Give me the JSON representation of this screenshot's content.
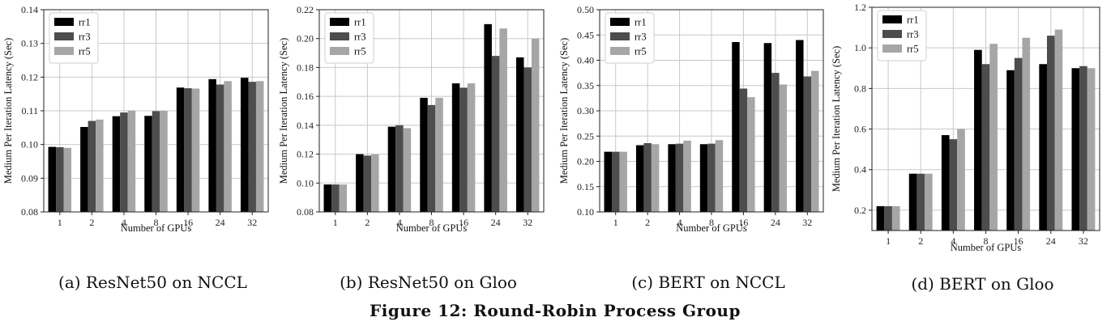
{
  "figure_title": "Figure 12: Round-Robin Process Group",
  "colors": {
    "rr1": "#000000",
    "rr3": "#4d4d4d",
    "rr5": "#a6a6a6"
  },
  "chart_data": [
    {
      "type": "bar",
      "caption": "(a) ResNet50 on NCCL",
      "xlabel": "Number of GPUs",
      "ylabel": "Medium Per Iteration Latency (Sec)",
      "categories": [
        "1",
        "2",
        "4",
        "8",
        "16",
        "24",
        "32"
      ],
      "ylim": [
        0.08,
        0.14
      ],
      "yticks": [
        "0.08",
        "0.09",
        "0.10",
        "0.11",
        "0.12",
        "0.13",
        "0.14"
      ],
      "legend_position": "top-left",
      "grid": true,
      "series": [
        {
          "name": "rr1",
          "values": [
            0.0993,
            0.1052,
            0.1084,
            0.1085,
            0.1169,
            0.1194,
            0.1198
          ]
        },
        {
          "name": "rr3",
          "values": [
            0.0992,
            0.107,
            0.1095,
            0.1099,
            0.1167,
            0.1178,
            0.1186
          ]
        },
        {
          "name": "rr5",
          "values": [
            0.099,
            0.1074,
            0.1101,
            0.11,
            0.1166,
            0.1188,
            0.1188
          ]
        }
      ]
    },
    {
      "type": "bar",
      "caption": "(b) ResNet50 on Gloo",
      "xlabel": "Number of GPUs",
      "ylabel": "Medium Per Iteration Latency (Sec)",
      "categories": [
        "1",
        "2",
        "4",
        "8",
        "16",
        "24",
        "32"
      ],
      "ylim": [
        0.08,
        0.22
      ],
      "yticks": [
        "0.08",
        "0.10",
        "0.12",
        "0.14",
        "0.16",
        "0.18",
        "0.20",
        "0.22"
      ],
      "legend_position": "top-left",
      "grid": true,
      "series": [
        {
          "name": "rr1",
          "values": [
            0.099,
            0.12,
            0.139,
            0.159,
            0.169,
            0.21,
            0.187
          ]
        },
        {
          "name": "rr3",
          "values": [
            0.099,
            0.119,
            0.14,
            0.154,
            0.166,
            0.188,
            0.18
          ]
        },
        {
          "name": "rr5",
          "values": [
            0.099,
            0.12,
            0.138,
            0.159,
            0.169,
            0.207,
            0.2
          ]
        }
      ]
    },
    {
      "type": "bar",
      "caption": "(c) BERT on NCCL",
      "xlabel": "Number of GPUs",
      "ylabel": "Medium Per Iteration Latency (Sec)",
      "categories": [
        "1",
        "2",
        "4",
        "8",
        "16",
        "24",
        "32"
      ],
      "ylim": [
        0.1,
        0.5
      ],
      "yticks": [
        "0.10",
        "0.15",
        "0.20",
        "0.25",
        "0.30",
        "0.35",
        "0.40",
        "0.45",
        "0.50"
      ],
      "legend_position": "top-left",
      "grid": true,
      "series": [
        {
          "name": "rr1",
          "values": [
            0.219,
            0.232,
            0.234,
            0.234,
            0.436,
            0.434,
            0.44
          ]
        },
        {
          "name": "rr3",
          "values": [
            0.219,
            0.236,
            0.235,
            0.235,
            0.344,
            0.375,
            0.368
          ]
        },
        {
          "name": "rr5",
          "values": [
            0.219,
            0.234,
            0.241,
            0.242,
            0.327,
            0.352,
            0.379
          ]
        }
      ]
    },
    {
      "type": "bar",
      "caption": "(d) BERT on Gloo",
      "xlabel": "Number of GPUs",
      "ylabel": "Medium Per Iteration Latency (Sec)",
      "categories": [
        "1",
        "2",
        "4",
        "8",
        "16",
        "24",
        "32"
      ],
      "ylim": [
        0.1,
        1.2
      ],
      "yticks": [
        "0.2",
        "0.4",
        "0.6",
        "0.8",
        "1.0",
        "1.2"
      ],
      "legend_position": "top-left",
      "grid": true,
      "series": [
        {
          "name": "rr1",
          "values": [
            0.22,
            0.38,
            0.57,
            0.99,
            0.89,
            0.92,
            0.9
          ]
        },
        {
          "name": "rr3",
          "values": [
            0.22,
            0.38,
            0.55,
            0.92,
            0.95,
            1.06,
            0.91
          ]
        },
        {
          "name": "rr5",
          "values": [
            0.22,
            0.38,
            0.6,
            1.02,
            1.05,
            1.09,
            0.9
          ]
        }
      ]
    }
  ]
}
